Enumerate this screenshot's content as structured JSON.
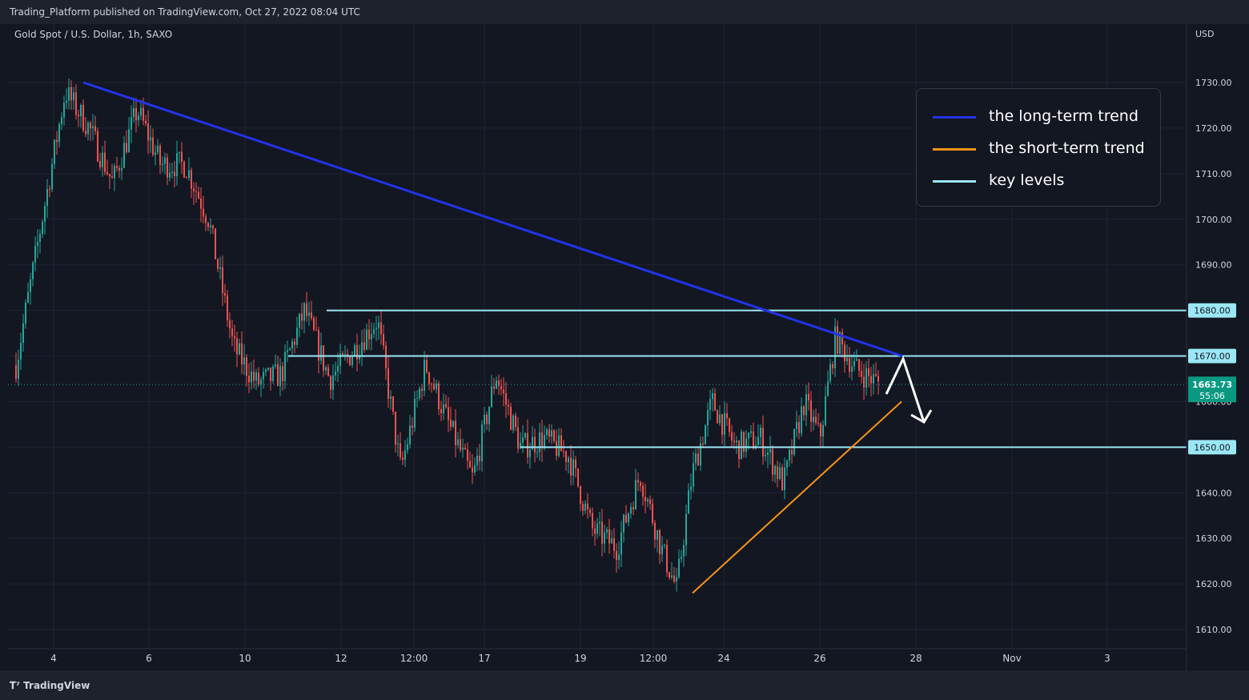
{
  "header": {
    "published": "Trading_Platform published on TradingView.com, Oct 27, 2022 08:04 UTC"
  },
  "footer": {
    "brand": "TradingView",
    "brand_icon": "tradingview-logo-icon"
  },
  "colors": {
    "background": "#131722",
    "up": "#26a69a",
    "down": "#ef5350",
    "long_trend": "#2433e8",
    "short_trend": "#f7931a",
    "key_levels": "#9be7f5",
    "arrow": "#ffffff"
  },
  "chart_data": {
    "type": "candlestick",
    "title": "Gold Spot / U.S. Dollar, 1h, SAXO",
    "currency": "USD",
    "ylim": [
      1603,
      1742
    ],
    "y_ticks": [
      1610,
      1620,
      1630,
      1640,
      1650,
      1660,
      1670,
      1680,
      1690,
      1700,
      1710,
      1720,
      1730
    ],
    "y_tick_labels": [
      "1610.00",
      "1620.00",
      "1630.00",
      "1640.00",
      "1650.00",
      "1660.00",
      "1670.00",
      "1680.00",
      "1690.00",
      "1700.00",
      "1710.00",
      "1720.00",
      "1730.00"
    ],
    "x_ticks": [
      "4",
      "6",
      "10",
      "12",
      "12:00",
      "17",
      "19",
      "12:00",
      "24",
      "26",
      "28",
      "Nov",
      "3"
    ],
    "last_price": {
      "value": 1663.73,
      "label": "1663.73",
      "countdown": "55:06"
    },
    "key_levels": [
      {
        "value": 1680,
        "label": "1680.00"
      },
      {
        "value": 1670,
        "label": "1670.00"
      },
      {
        "value": 1650,
        "label": "1650.00"
      }
    ],
    "long_trend": {
      "from": [
        "Oct 4",
        1730
      ],
      "to": [
        "Oct 27",
        1670
      ]
    },
    "short_trend": {
      "from": [
        "Oct 21",
        1618
      ],
      "to": [
        "Oct 27",
        1660
      ]
    },
    "approx_price_path": [
      [
        "Oct 3",
        1668
      ],
      [
        "Oct 4",
        1700
      ],
      [
        "Oct 4",
        1728
      ],
      [
        "Oct 5",
        1720
      ],
      [
        "Oct 5",
        1708
      ],
      [
        "Oct 6",
        1724
      ],
      [
        "Oct 6",
        1712
      ],
      [
        "Oct 7",
        1712
      ],
      [
        "Oct 7",
        1700
      ],
      [
        "Oct 10",
        1672
      ],
      [
        "Oct 10",
        1664
      ],
      [
        "Oct 11",
        1666
      ],
      [
        "Oct 11",
        1680
      ],
      [
        "Oct 12",
        1665
      ],
      [
        "Oct 12",
        1671
      ],
      [
        "Oct 13",
        1678
      ],
      [
        "Oct 13",
        1645
      ],
      [
        "Oct 14",
        1668
      ],
      [
        "Oct 14",
        1655
      ],
      [
        "Oct 17",
        1643
      ],
      [
        "Oct 17",
        1666
      ],
      [
        "Oct 18",
        1650
      ],
      [
        "Oct 18",
        1652
      ],
      [
        "Oct 19",
        1648
      ],
      [
        "Oct 19",
        1632
      ],
      [
        "Oct 20",
        1628
      ],
      [
        "Oct 20",
        1644
      ],
      [
        "Oct 21",
        1628
      ],
      [
        "Oct 21",
        1619
      ],
      [
        "Oct 21",
        1644
      ],
      [
        "Oct 24",
        1660
      ],
      [
        "Oct 24",
        1650
      ],
      [
        "Oct 25",
        1652
      ],
      [
        "Oct 25",
        1642
      ],
      [
        "Oct 26",
        1660
      ],
      [
        "Oct 26",
        1652
      ],
      [
        "Oct 26",
        1674
      ],
      [
        "Oct 27",
        1667
      ],
      [
        "Oct 27",
        1664
      ]
    ]
  },
  "legend": {
    "items": [
      {
        "label": "the long-term trend",
        "color": "#2433e8"
      },
      {
        "label": "the short-term trend",
        "color": "#f7931a"
      },
      {
        "label": "key levels",
        "color": "#9be7f5"
      }
    ]
  }
}
